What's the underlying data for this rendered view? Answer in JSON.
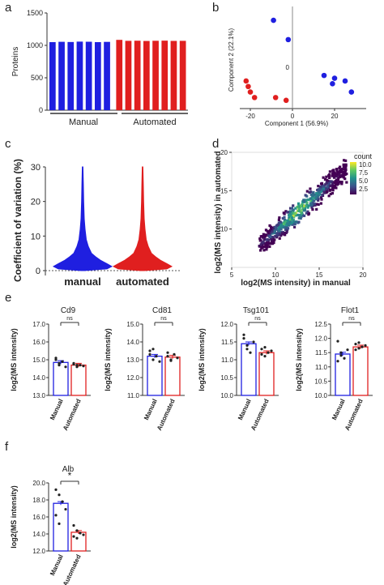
{
  "panel_letters": [
    "a",
    "b",
    "c",
    "d",
    "e",
    "f"
  ],
  "colors": {
    "manual": "#1f1fe0",
    "automated": "#e01f1f",
    "axis": "#333333"
  },
  "chart_data": [
    {
      "id": "a",
      "type": "bar",
      "ylabel": "Proteins",
      "ylim": [
        0,
        1500
      ],
      "yticks": [
        "0",
        "500",
        "1000",
        "1500"
      ],
      "group_labels": [
        "Manual",
        "Automated"
      ],
      "series": [
        {
          "name": "Manual",
          "values": [
            1050,
            1055,
            1052,
            1058,
            1056,
            1050,
            1054
          ]
        },
        {
          "name": "Automated",
          "values": [
            1085,
            1070,
            1072,
            1068,
            1071,
            1073,
            1069,
            1070
          ]
        }
      ]
    },
    {
      "id": "b",
      "type": "scatter",
      "xlabel": "Component 1 (56.9%)",
      "ylabel": "Component 2 (22.1%)",
      "xticks": [
        "-20",
        "0",
        "20"
      ],
      "yticks": [
        "0"
      ],
      "xlim": [
        -25,
        35
      ],
      "ylim": [
        -15,
        22
      ],
      "series": [
        {
          "color": "blue",
          "points": [
            [
              -9,
              17
            ],
            [
              -2,
              10
            ],
            [
              15,
              -3
            ],
            [
              20,
              -4
            ],
            [
              25,
              -5
            ],
            [
              19,
              -6
            ],
            [
              28,
              -9
            ]
          ]
        },
        {
          "color": "red",
          "points": [
            [
              -22,
              -5
            ],
            [
              -21,
              -7
            ],
            [
              -20,
              -9
            ],
            [
              -18,
              -11
            ],
            [
              -8,
              -11
            ],
            [
              -3,
              -12
            ]
          ]
        }
      ]
    },
    {
      "id": "c",
      "type": "violin",
      "ylabel": "Coefficient of variation (%)",
      "ylim": [
        0,
        30
      ],
      "yticks": [
        "0",
        "10",
        "20",
        "30"
      ],
      "categories": [
        "manual",
        "automated"
      ],
      "max": [
        30,
        30
      ]
    },
    {
      "id": "d",
      "type": "heatmap",
      "xlabel": "log2(MS intensity) in manual",
      "ylabel": "log2(MS intensity) in automated",
      "xticks": [
        "5",
        "10",
        "15",
        "20"
      ],
      "yticks": [
        "10",
        "15",
        "20"
      ],
      "xlim": [
        5,
        20
      ],
      "ylim": [
        5,
        20
      ],
      "legend_title": "count",
      "legend_ticks": [
        "10.0",
        "7.5",
        "5.0",
        "2.5"
      ]
    },
    {
      "id": "e1",
      "type": "bar",
      "title": "Cd9",
      "ylabel": "log2(MS intensity)",
      "ylim": [
        13.0,
        17.0
      ],
      "yticks": [
        "13.0",
        "14.0",
        "15.0",
        "16.0",
        "17.0"
      ],
      "categories": [
        "Manual",
        "Automated"
      ],
      "values": [
        14.85,
        14.7
      ],
      "sig": "ns",
      "points": [
        [
          15.0,
          14.7,
          14.9,
          14.6,
          15.1,
          14.8
        ],
        [
          14.75,
          14.6,
          14.7,
          14.65,
          14.8,
          14.7
        ]
      ]
    },
    {
      "id": "e2",
      "type": "bar",
      "title": "Cd81",
      "ylabel": "log2(MS intensity)",
      "ylim": [
        11.0,
        15.0
      ],
      "yticks": [
        "11.0",
        "12.0",
        "13.0",
        "14.0",
        "15.0"
      ],
      "categories": [
        "Manual",
        "Automated"
      ],
      "values": [
        13.2,
        13.15
      ],
      "sig": "ns",
      "points": [
        [
          13.5,
          13.0,
          13.2,
          12.9,
          13.3,
          13.6
        ],
        [
          13.2,
          13.0,
          13.3,
          13.1,
          13.4,
          12.95
        ]
      ]
    },
    {
      "id": "e3",
      "type": "bar",
      "title": "Tsg101",
      "ylabel": "log2(MS intensity)",
      "ylim": [
        10.0,
        12.0
      ],
      "yticks": [
        "10.0",
        "10.5",
        "11.0",
        "11.5",
        "12.0"
      ],
      "categories": [
        "Manual",
        "Automated"
      ],
      "values": [
        11.45,
        11.2
      ],
      "sig": "ns",
      "points": [
        [
          11.7,
          11.4,
          11.2,
          11.5,
          11.6,
          11.3
        ],
        [
          11.3,
          11.1,
          11.2,
          11.25,
          11.15,
          11.35
        ]
      ]
    },
    {
      "id": "e4",
      "type": "bar",
      "title": "Flot1",
      "ylabel": "log2(MS intensity)",
      "ylim": [
        10.0,
        12.5
      ],
      "yticks": [
        "10.0",
        "10.5",
        "11.0",
        "11.5",
        "12.0",
        "12.5"
      ],
      "categories": [
        "Manual",
        "Automated"
      ],
      "values": [
        11.45,
        11.7
      ],
      "sig": "ns",
      "points": [
        [
          11.9,
          11.4,
          11.3,
          11.6,
          11.2,
          11.5
        ],
        [
          11.8,
          11.65,
          11.7,
          11.75,
          11.6,
          11.85
        ]
      ]
    },
    {
      "id": "f",
      "type": "bar",
      "title": "Alb",
      "ylabel": "log2(MS intensity)",
      "ylim": [
        12.0,
        20.0
      ],
      "yticks": [
        "12.0",
        "14.0",
        "16.0",
        "18.0",
        "20.0"
      ],
      "categories": [
        "Manual",
        "Automated"
      ],
      "values": [
        17.6,
        14.2
      ],
      "sig": "*",
      "points": [
        [
          19.2,
          18.6,
          17.8,
          16.9,
          16.2,
          15.2
        ],
        [
          15.0,
          14.4,
          14.1,
          13.9,
          13.7,
          13.5
        ]
      ]
    }
  ]
}
